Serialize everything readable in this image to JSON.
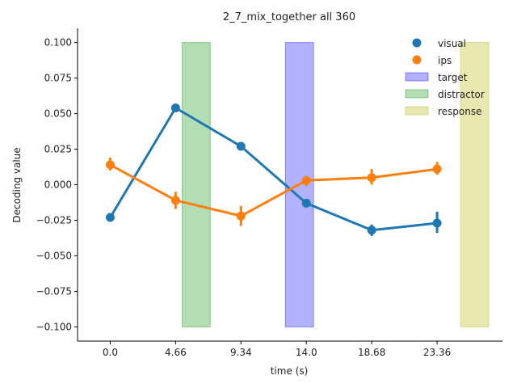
{
  "chart_data": {
    "type": "line",
    "title": "2_7_mix_together all 360",
    "xlabel": "time (s)",
    "ylabel": "Decoding value",
    "x_categories": [
      "0.0",
      "4.66",
      "9.34",
      "14.0",
      "18.68",
      "23.36"
    ],
    "xlim": [
      -0.5,
      6.0
    ],
    "ylim": [
      -0.11,
      0.11
    ],
    "y_ticks": [
      0.1,
      0.075,
      0.05,
      0.025,
      0.0,
      -0.025,
      -0.05,
      -0.075,
      -0.1
    ],
    "y_tick_labels": [
      "0.100",
      "0.075",
      "0.050",
      "0.025",
      "0.000",
      "−0.025",
      "−0.050",
      "−0.075",
      "−0.100"
    ],
    "series": [
      {
        "name": "visual",
        "color": "#1f77b4",
        "values": [
          -0.023,
          0.054,
          0.027,
          -0.013,
          -0.032,
          -0.027
        ],
        "err_low": [
          -0.026,
          0.052,
          0.025,
          -0.015,
          -0.036,
          -0.034
        ],
        "err_high": [
          -0.02,
          0.057,
          0.029,
          -0.011,
          -0.028,
          -0.019
        ]
      },
      {
        "name": "ips",
        "color": "#ff7f0e",
        "values": [
          0.014,
          -0.011,
          -0.022,
          0.003,
          0.005,
          0.011
        ],
        "err_low": [
          0.01,
          -0.017,
          -0.029,
          -0.001,
          0.0,
          0.007
        ],
        "err_high": [
          0.019,
          -0.005,
          -0.015,
          0.006,
          0.011,
          0.016
        ]
      }
    ],
    "shaded_regions": [
      {
        "name": "distractor",
        "color": "#2ca02c",
        "opacity": 0.36,
        "x_start": 1.1,
        "x_end": 1.53,
        "y_start": -0.1,
        "y_end": 0.1
      },
      {
        "name": "target",
        "color": "#0000ff",
        "opacity": 0.3,
        "x_start": 2.68,
        "x_end": 3.11,
        "y_start": -0.1,
        "y_end": 0.1
      },
      {
        "name": "response",
        "color": "#bcbd22",
        "opacity": 0.36,
        "x_start": 5.36,
        "x_end": 5.79,
        "y_start": -0.1,
        "y_end": 0.1
      }
    ],
    "legend": {
      "placement": "top-right",
      "items": [
        {
          "label": "visual",
          "kind": "marker",
          "color": "#1f77b4"
        },
        {
          "label": "ips",
          "kind": "marker",
          "color": "#ff7f0e"
        },
        {
          "label": "target",
          "kind": "patch",
          "color": "#0000ff",
          "opacity": 0.3
        },
        {
          "label": "distractor",
          "kind": "patch",
          "color": "#2ca02c",
          "opacity": 0.36
        },
        {
          "label": "response",
          "kind": "patch",
          "color": "#bcbd22",
          "opacity": 0.36
        }
      ]
    },
    "grid": false
  }
}
